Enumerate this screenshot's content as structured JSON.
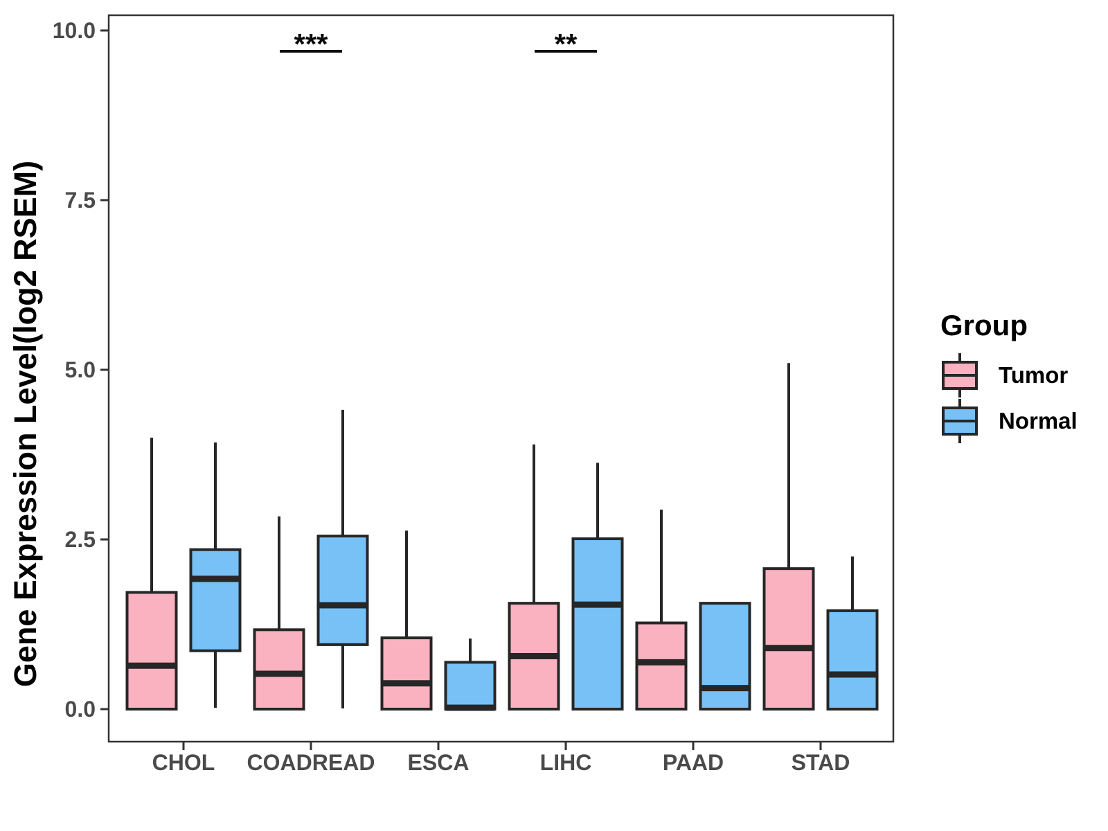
{
  "figure": {
    "legend": {
      "title": "Group",
      "items": [
        {
          "label": "Tumor",
          "color": "#FAB1C0"
        },
        {
          "label": "Normal",
          "color": "#77C1F7"
        }
      ]
    },
    "colors": {
      "tumor_fill": "#FAB1C0",
      "normal_fill": "#77C1F7",
      "box_border": "#262626",
      "panel_border": "#333333",
      "axis_text": "#4A4A4A",
      "title_text": "#000000",
      "annotation": "#0A0A0A",
      "background": "#FFFFFF"
    }
  },
  "chart_data": {
    "type": "boxplot",
    "title": "",
    "xlabel": "",
    "ylabel": "Gene Expression Level(log2 RSEM)",
    "grid": false,
    "legend_position": "right",
    "ylim": [
      -0.48,
      10.22
    ],
    "y_ticks": {
      "values": [
        0,
        2.5,
        5,
        7.5,
        10
      ],
      "labels": [
        "0.0",
        "2.5",
        "5.0",
        "7.5",
        "10.0"
      ]
    },
    "categories": [
      "CHOL",
      "COADREAD",
      "ESCA",
      "LIHC",
      "PAAD",
      "STAD"
    ],
    "series": [
      {
        "name": "Tumor",
        "color": "#FAB1C0",
        "boxes": [
          {
            "category": "CHOL",
            "min": 0,
            "q1": 0,
            "median": 0.64,
            "q3": 1.72,
            "max": 4.0
          },
          {
            "category": "COADREAD",
            "min": 0,
            "q1": 0,
            "median": 0.52,
            "q3": 1.17,
            "max": 2.84
          },
          {
            "category": "ESCA",
            "min": 0,
            "q1": 0,
            "median": 0.38,
            "q3": 1.05,
            "max": 2.63
          },
          {
            "category": "LIHC",
            "min": 0,
            "q1": 0,
            "median": 0.78,
            "q3": 1.56,
            "max": 3.9
          },
          {
            "category": "PAAD",
            "min": 0,
            "q1": 0,
            "median": 0.69,
            "q3": 1.27,
            "max": 2.94
          },
          {
            "category": "STAD",
            "min": 0,
            "q1": 0,
            "median": 0.9,
            "q3": 2.07,
            "max": 5.1
          }
        ]
      },
      {
        "name": "Normal",
        "color": "#77C1F7",
        "boxes": [
          {
            "category": "CHOL",
            "min": 0.02,
            "q1": 0.86,
            "median": 1.92,
            "q3": 2.35,
            "max": 3.93
          },
          {
            "category": "COADREAD",
            "min": 0.01,
            "q1": 0.95,
            "median": 1.53,
            "q3": 2.55,
            "max": 4.41
          },
          {
            "category": "ESCA",
            "min": 0,
            "q1": 0,
            "median": 0.02,
            "q3": 0.69,
            "max": 1.04
          },
          {
            "category": "LIHC",
            "min": 0,
            "q1": 0,
            "median": 1.54,
            "q3": 2.51,
            "max": 3.63
          },
          {
            "category": "PAAD",
            "min": 0,
            "q1": 0,
            "median": 0.31,
            "q3": 1.56,
            "max": 1.56
          },
          {
            "category": "STAD",
            "min": 0,
            "q1": 0,
            "median": 0.51,
            "q3": 1.45,
            "max": 2.25
          }
        ]
      }
    ],
    "annotations": [
      {
        "category": "COADREAD",
        "label": "***"
      },
      {
        "category": "LIHC",
        "label": "**"
      }
    ]
  }
}
